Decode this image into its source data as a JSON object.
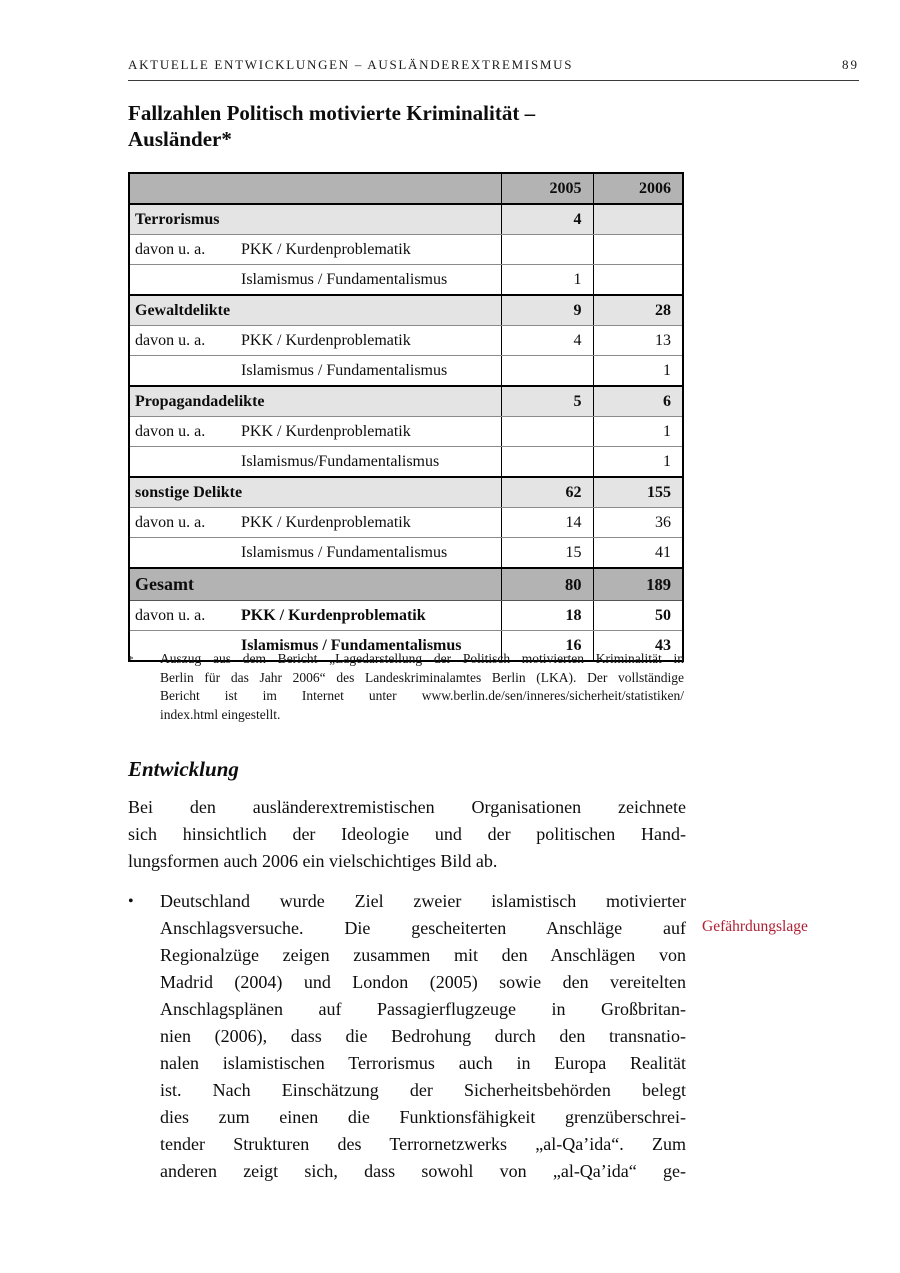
{
  "header": {
    "running_title": "AKTUELLE ENTWICKLUNGEN – AUSLÄNDEREXTREMISMUS",
    "page_number": "89"
  },
  "title": {
    "line1": "Fallzahlen Politisch motivierte Kriminalität –",
    "line2": "Ausländer*"
  },
  "table": {
    "year_columns": [
      "2005",
      "2006"
    ],
    "rows": [
      {
        "type": "category",
        "prefix": "",
        "label": "Terrorismus",
        "v2005": "4",
        "v2006": ""
      },
      {
        "type": "sub",
        "prefix": "davon u. a.",
        "label": "PKK / Kurdenproblematik",
        "v2005": "",
        "v2006": ""
      },
      {
        "type": "sub",
        "prefix": "",
        "label": "Islamismus / Fundamentalismus",
        "v2005": "1",
        "v2006": ""
      },
      {
        "type": "category",
        "prefix": "",
        "label": "Gewaltdelikte",
        "v2005": "9",
        "v2006": "28"
      },
      {
        "type": "sub",
        "prefix": "davon u. a.",
        "label": "PKK / Kurdenproblematik",
        "v2005": "4",
        "v2006": "13"
      },
      {
        "type": "sub",
        "prefix": "",
        "label": "Islamismus / Fundamentalismus",
        "v2005": "",
        "v2006": "1"
      },
      {
        "type": "category",
        "prefix": "",
        "label": "Propagandadelikte",
        "v2005": "5",
        "v2006": "6"
      },
      {
        "type": "sub",
        "prefix": "davon u. a.",
        "label": "PKK / Kurdenproblematik",
        "v2005": "",
        "v2006": "1"
      },
      {
        "type": "sub",
        "prefix": "",
        "label": "Islamismus/Fundamentalismus",
        "v2005": "",
        "v2006": "1"
      },
      {
        "type": "category",
        "prefix": "",
        "label": "sonstige Delikte",
        "v2005": "62",
        "v2006": "155"
      },
      {
        "type": "sub",
        "prefix": "davon u. a.",
        "label": "PKK / Kurdenproblematik",
        "v2005": "14",
        "v2006": "36"
      },
      {
        "type": "sub",
        "prefix": "",
        "label": "Islamismus / Fundamentalismus",
        "v2005": "15",
        "v2006": "41"
      },
      {
        "type": "total",
        "prefix": "",
        "label": "Gesamt",
        "v2005": "80",
        "v2006": "189"
      },
      {
        "type": "bsub",
        "prefix": "davon u. a.",
        "label": "PKK / Kurdenproblematik",
        "v2005": "18",
        "v2006": "50"
      },
      {
        "type": "bsub",
        "prefix": "",
        "label": "Islamismus / Fundamentalismus",
        "v2005": "16",
        "v2006": "43"
      }
    ]
  },
  "footnote": {
    "marker": "*",
    "lines": [
      "Auszug aus dem Bericht „Lagedarstellung der Politisch motivierten Kriminalität in",
      "Berlin für das Jahr 2006“ des Landeskriminalamtes Berlin (LKA). Der vollständige",
      "Bericht ist im Internet unter www.berlin.de/sen/inneres/sicherheit/statistiken/",
      "index.html eingestellt."
    ]
  },
  "section": {
    "heading": "Entwicklung",
    "paragraph_lines": [
      "Bei den ausländerextremistischen Organisationen zeichnete",
      "sich hinsichtlich der Ideologie und der politischen Hand-",
      "lungsformen auch 2006 ein vielschichtiges Bild ab."
    ],
    "bullet_marker": "•",
    "bullet_lines": [
      "Deutschland wurde Ziel zweier islamistisch motivierter",
      "Anschlagsversuche. Die gescheiterten Anschläge auf",
      "Regionalzüge zeigen zusammen mit den Anschlägen von",
      "Madrid (2004) und London (2005) sowie den vereitelten",
      "Anschlagsplänen auf Passagierflugzeuge in Großbritan-",
      "nien (2006), dass die Bedrohung durch den transnatio-",
      "nalen islamistischen Terrorismus auch in Europa Realität",
      "ist. Nach Einschätzung der Sicherheitsbehörden belegt",
      "dies zum einen die Funktionsfähigkeit grenzüberschrei-",
      "tender Strukturen des Terrornetzwerks „al-Qa’ida“. Zum",
      "anderen zeigt sich, dass sowohl von „al-Qa’ida“ ge-"
    ],
    "margin_note": "Gefährdungslage"
  },
  "colors": {
    "header_row_bg": "#b3b3b3",
    "category_row_bg": "#e4e4e4",
    "total_row_bg": "#b3b3b3",
    "margin_note_red": "#b01e32"
  }
}
